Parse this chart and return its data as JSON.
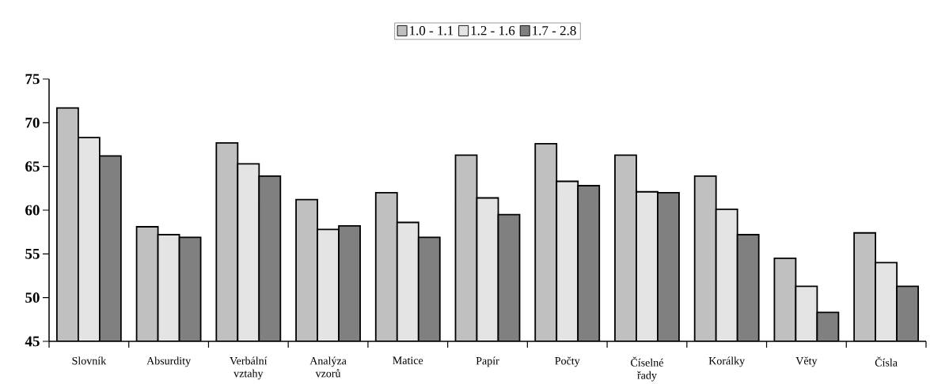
{
  "chart_data": {
    "type": "bar",
    "categories": [
      "Slovník",
      "Absurdity",
      "Verbální vztahy",
      "Analýza vzorů",
      "Matice",
      "Papír",
      "Počty",
      "Číselné řady",
      "Korálky",
      "Věty",
      "Čísla"
    ],
    "series": [
      {
        "name": "1.0 - 1.1",
        "color": "#c0c0c0",
        "values": [
          71.7,
          58.1,
          67.7,
          61.2,
          62.0,
          66.3,
          67.6,
          66.3,
          63.9,
          54.5,
          57.4
        ]
      },
      {
        "name": "1.2 - 1.6",
        "color": "#e4e4e4",
        "values": [
          68.3,
          57.2,
          65.3,
          57.8,
          58.6,
          61.4,
          63.3,
          62.1,
          60.1,
          51.3,
          54.0
        ]
      },
      {
        "name": "1.7 - 2.8",
        "color": "#808080",
        "values": [
          66.2,
          56.9,
          63.9,
          58.2,
          56.9,
          59.5,
          62.8,
          62.0,
          57.2,
          48.3,
          51.3
        ]
      }
    ],
    "ylim": [
      45,
      75
    ],
    "yticks": [
      45,
      50,
      55,
      60,
      65,
      70,
      75
    ],
    "legend": "top",
    "grid": false
  }
}
